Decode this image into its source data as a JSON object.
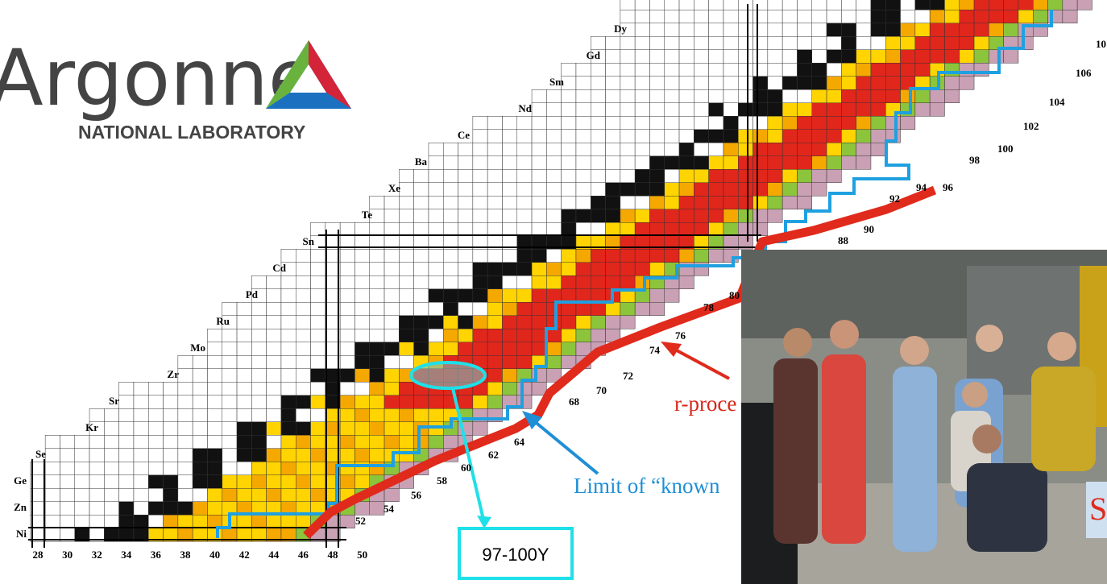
{
  "logo": {
    "name": "Argonne",
    "subtitle": "NATIONAL LABORATORY"
  },
  "chart": {
    "elements": [
      "Ni",
      "Zn",
      "Ge",
      "Se",
      "Kr",
      "Sr",
      "Zr",
      "Mo",
      "Ru",
      "Pd",
      "Cd",
      "Sn",
      "Te",
      "Xe",
      "Ba",
      "Ce",
      "Nd",
      "Sm",
      "Gd",
      "Dy"
    ],
    "neutron_axis": [
      "28",
      "30",
      "32",
      "34",
      "36",
      "38",
      "40",
      "42",
      "44",
      "46",
      "48",
      "50"
    ],
    "neutron_diagonal": [
      "52",
      "54",
      "56",
      "58",
      "60",
      "62",
      "64",
      "68",
      "70",
      "72",
      "74",
      "76",
      "78",
      "80",
      "88",
      "90",
      "92",
      "94",
      "96",
      "98",
      "100",
      "102",
      "104",
      "106",
      "10"
    ]
  },
  "annotations": {
    "r_process": "r-proce",
    "limit": "Limit of “known",
    "highlight_label": "97-100Y",
    "photo_caption": "S"
  }
}
